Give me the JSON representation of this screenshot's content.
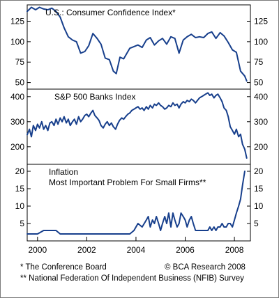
{
  "chart_data": {
    "type": "line",
    "x_range": [
      1999.58,
      2008.65
    ],
    "x_ticks": [
      "2000",
      "2002",
      "2004",
      "2006",
      "2008"
    ],
    "line_color": "#173f8c",
    "panels": [
      {
        "title": "U.S.:  Consumer Confidence Index*",
        "ylim": [
          42,
          145
        ],
        "yticks": [
          "125",
          "100",
          "75",
          "50"
        ],
        "points": [
          [
            1999.58,
            137
          ],
          [
            1999.75,
            142
          ],
          [
            1999.92,
            139
          ],
          [
            2000.08,
            142
          ],
          [
            2000.25,
            140
          ],
          [
            2000.42,
            139
          ],
          [
            2000.58,
            141
          ],
          [
            2000.75,
            137
          ],
          [
            2000.92,
            130
          ],
          [
            2001.08,
            117
          ],
          [
            2001.25,
            106
          ],
          [
            2001.42,
            102
          ],
          [
            2001.58,
            100
          ],
          [
            2001.75,
            86
          ],
          [
            2001.92,
            88
          ],
          [
            2002.08,
            95
          ],
          [
            2002.25,
            110
          ],
          [
            2002.42,
            104
          ],
          [
            2002.58,
            97
          ],
          [
            2002.75,
            80
          ],
          [
            2002.92,
            78
          ],
          [
            2003.08,
            64
          ],
          [
            2003.2,
            61
          ],
          [
            2003.35,
            81
          ],
          [
            2003.5,
            79
          ],
          [
            2003.75,
            92
          ],
          [
            2003.92,
            94
          ],
          [
            2004.08,
            96
          ],
          [
            2004.25,
            93
          ],
          [
            2004.42,
            102
          ],
          [
            2004.58,
            105
          ],
          [
            2004.75,
            96
          ],
          [
            2004.92,
            101
          ],
          [
            2005.08,
            104
          ],
          [
            2005.25,
            97
          ],
          [
            2005.42,
            106
          ],
          [
            2005.58,
            104
          ],
          [
            2005.75,
            86
          ],
          [
            2005.92,
            102
          ],
          [
            2006.08,
            106
          ],
          [
            2006.25,
            109
          ],
          [
            2006.42,
            105
          ],
          [
            2006.58,
            106
          ],
          [
            2006.75,
            105
          ],
          [
            2006.92,
            110
          ],
          [
            2007.08,
            112
          ],
          [
            2007.25,
            104
          ],
          [
            2007.42,
            111
          ],
          [
            2007.58,
            107
          ],
          [
            2007.75,
            99
          ],
          [
            2007.92,
            90
          ],
          [
            2008.08,
            87
          ],
          [
            2008.25,
            64
          ],
          [
            2008.42,
            58
          ],
          [
            2008.5,
            52
          ]
        ]
      },
      {
        "title": "S&P 500 Banks Index",
        "ylim": [
          130,
          430
        ],
        "yticks": [
          "400",
          "300",
          "200"
        ],
        "points": [
          [
            1999.58,
            248
          ],
          [
            1999.67,
            270
          ],
          [
            1999.75,
            240
          ],
          [
            1999.83,
            285
          ],
          [
            1999.92,
            265
          ],
          [
            2000.0,
            290
          ],
          [
            2000.08,
            275
          ],
          [
            2000.17,
            300
          ],
          [
            2000.25,
            270
          ],
          [
            2000.33,
            285
          ],
          [
            2000.42,
            265
          ],
          [
            2000.5,
            295
          ],
          [
            2000.58,
            300
          ],
          [
            2000.67,
            285
          ],
          [
            2000.75,
            310
          ],
          [
            2000.83,
            290
          ],
          [
            2000.92,
            315
          ],
          [
            2001.0,
            300
          ],
          [
            2001.08,
            320
          ],
          [
            2001.17,
            295
          ],
          [
            2001.25,
            310
          ],
          [
            2001.33,
            285
          ],
          [
            2001.42,
            300
          ],
          [
            2001.5,
            310
          ],
          [
            2001.58,
            290
          ],
          [
            2001.67,
            320
          ],
          [
            2001.75,
            300
          ],
          [
            2001.83,
            310
          ],
          [
            2001.92,
            325
          ],
          [
            2002.0,
            330
          ],
          [
            2002.08,
            320
          ],
          [
            2002.17,
            335
          ],
          [
            2002.25,
            345
          ],
          [
            2002.33,
            325
          ],
          [
            2002.42,
            315
          ],
          [
            2002.5,
            305
          ],
          [
            2002.58,
            285
          ],
          [
            2002.67,
            275
          ],
          [
            2002.75,
            290
          ],
          [
            2002.83,
            300
          ],
          [
            2002.92,
            285
          ],
          [
            2003.0,
            295
          ],
          [
            2003.08,
            280
          ],
          [
            2003.17,
            270
          ],
          [
            2003.25,
            290
          ],
          [
            2003.33,
            305
          ],
          [
            2003.42,
            315
          ],
          [
            2003.5,
            310
          ],
          [
            2003.58,
            320
          ],
          [
            2003.67,
            330
          ],
          [
            2003.75,
            335
          ],
          [
            2003.83,
            345
          ],
          [
            2003.92,
            350
          ],
          [
            2004.0,
            355
          ],
          [
            2004.08,
            360
          ],
          [
            2004.17,
            350
          ],
          [
            2004.25,
            355
          ],
          [
            2004.33,
            345
          ],
          [
            2004.42,
            360
          ],
          [
            2004.5,
            350
          ],
          [
            2004.58,
            365
          ],
          [
            2004.67,
            355
          ],
          [
            2004.75,
            370
          ],
          [
            2004.83,
            365
          ],
          [
            2004.92,
            375
          ],
          [
            2005.0,
            365
          ],
          [
            2005.08,
            360
          ],
          [
            2005.17,
            350
          ],
          [
            2005.25,
            355
          ],
          [
            2005.33,
            365
          ],
          [
            2005.42,
            360
          ],
          [
            2005.5,
            375
          ],
          [
            2005.58,
            365
          ],
          [
            2005.67,
            370
          ],
          [
            2005.75,
            355
          ],
          [
            2005.83,
            370
          ],
          [
            2005.92,
            380
          ],
          [
            2006.0,
            375
          ],
          [
            2006.08,
            385
          ],
          [
            2006.17,
            380
          ],
          [
            2006.25,
            390
          ],
          [
            2006.33,
            385
          ],
          [
            2006.42,
            375
          ],
          [
            2006.5,
            385
          ],
          [
            2006.58,
            395
          ],
          [
            2006.67,
            400
          ],
          [
            2006.75,
            405
          ],
          [
            2006.83,
            410
          ],
          [
            2006.92,
            415
          ],
          [
            2007.0,
            405
          ],
          [
            2007.08,
            410
          ],
          [
            2007.17,
            395
          ],
          [
            2007.25,
            405
          ],
          [
            2007.33,
            410
          ],
          [
            2007.42,
            395
          ],
          [
            2007.5,
            380
          ],
          [
            2007.58,
            355
          ],
          [
            2007.67,
            345
          ],
          [
            2007.75,
            320
          ],
          [
            2007.83,
            280
          ],
          [
            2007.92,
            265
          ],
          [
            2008.0,
            250
          ],
          [
            2008.08,
            270
          ],
          [
            2008.17,
            240
          ],
          [
            2008.25,
            250
          ],
          [
            2008.33,
            210
          ],
          [
            2008.42,
            190
          ],
          [
            2008.5,
            155
          ]
        ]
      },
      {
        "title": "Inflation",
        "subtitle": "Most Important Problem For Small Firms**",
        "ylim": [
          0,
          22
        ],
        "yticks": [
          "20",
          "15",
          "10",
          "5"
        ],
        "points": [
          [
            1999.58,
            2
          ],
          [
            1999.83,
            2
          ],
          [
            2000.0,
            2
          ],
          [
            2000.25,
            3
          ],
          [
            2000.42,
            3
          ],
          [
            2000.58,
            3
          ],
          [
            2000.75,
            3
          ],
          [
            2000.92,
            2
          ],
          [
            2001.08,
            2
          ],
          [
            2001.25,
            2
          ],
          [
            2001.42,
            2
          ],
          [
            2001.58,
            2
          ],
          [
            2001.75,
            2
          ],
          [
            2001.92,
            2
          ],
          [
            2002.08,
            2
          ],
          [
            2002.25,
            2
          ],
          [
            2002.42,
            2
          ],
          [
            2002.58,
            2
          ],
          [
            2002.75,
            2
          ],
          [
            2002.92,
            2
          ],
          [
            2003.08,
            2
          ],
          [
            2003.25,
            2
          ],
          [
            2003.42,
            2
          ],
          [
            2003.58,
            2
          ],
          [
            2003.75,
            2
          ],
          [
            2003.92,
            3
          ],
          [
            2004.08,
            5
          ],
          [
            2004.25,
            4
          ],
          [
            2004.42,
            6
          ],
          [
            2004.5,
            7
          ],
          [
            2004.58,
            4
          ],
          [
            2004.67,
            6
          ],
          [
            2004.75,
            5
          ],
          [
            2004.83,
            7
          ],
          [
            2004.92,
            5
          ],
          [
            2005.0,
            3
          ],
          [
            2005.08,
            5
          ],
          [
            2005.17,
            7
          ],
          [
            2005.25,
            5
          ],
          [
            2005.33,
            8
          ],
          [
            2005.42,
            4
          ],
          [
            2005.5,
            8
          ],
          [
            2005.58,
            6
          ],
          [
            2005.67,
            4
          ],
          [
            2005.75,
            5
          ],
          [
            2005.83,
            8
          ],
          [
            2005.92,
            7
          ],
          [
            2006.0,
            6
          ],
          [
            2006.08,
            4
          ],
          [
            2006.17,
            6
          ],
          [
            2006.25,
            7
          ],
          [
            2006.33,
            5
          ],
          [
            2006.42,
            3
          ],
          [
            2006.5,
            3
          ],
          [
            2006.58,
            3
          ],
          [
            2006.67,
            3
          ],
          [
            2006.75,
            3
          ],
          [
            2006.83,
            3
          ],
          [
            2006.92,
            3
          ],
          [
            2007.0,
            4
          ],
          [
            2007.08,
            3
          ],
          [
            2007.17,
            4
          ],
          [
            2007.25,
            3
          ],
          [
            2007.33,
            4
          ],
          [
            2007.42,
            4
          ],
          [
            2007.5,
            5
          ],
          [
            2007.58,
            4
          ],
          [
            2007.67,
            4
          ],
          [
            2007.75,
            5
          ],
          [
            2007.83,
            5
          ],
          [
            2007.92,
            4
          ],
          [
            2008.0,
            6
          ],
          [
            2008.08,
            8
          ],
          [
            2008.17,
            10
          ],
          [
            2008.25,
            12
          ],
          [
            2008.33,
            16
          ],
          [
            2008.42,
            20
          ]
        ]
      }
    ],
    "footnotes": [
      "* The Conference Board",
      "** National Federation Of Independent Business (NFIB) Survey"
    ],
    "credit": "© BCA Research 2008"
  }
}
